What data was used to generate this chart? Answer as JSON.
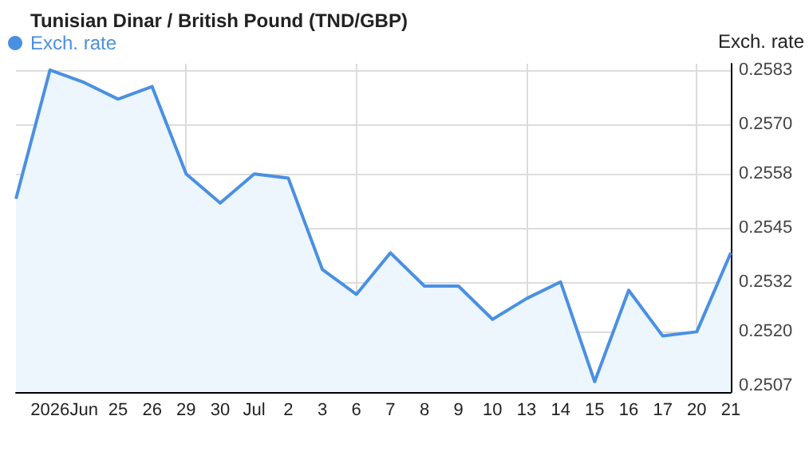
{
  "chart_data": {
    "type": "area",
    "title": "Tunisian Dinar / British Pound (TND/GBP)",
    "ylabel": "Exch. rate",
    "categories": [
      null,
      "2026",
      "Jun",
      "25",
      "26",
      "29",
      "30",
      "Jul",
      "2",
      "3",
      "6",
      "7",
      "8",
      "9",
      "10",
      "13",
      "14",
      "15",
      "16",
      "17",
      "20",
      "21"
    ],
    "series": [
      {
        "name": "Exch. rate",
        "color": "#4a90e2",
        "values": [
          0.2552,
          0.2583,
          0.258,
          0.2576,
          0.2579,
          0.2558,
          0.2551,
          0.2558,
          0.2557,
          0.2535,
          0.2529,
          0.2539,
          0.2531,
          0.2531,
          0.2523,
          0.2528,
          0.2532,
          0.2508,
          0.253,
          0.2519,
          0.252,
          0.2539
        ]
      }
    ],
    "ylim": [
      0.25055,
      0.25845
    ],
    "yticks": [
      0.2507,
      {
        "value": 0.252,
        "label": "0.2520"
      },
      0.2532,
      0.2545,
      0.2558,
      {
        "value": 0.257,
        "label": "0.2570"
      },
      0.2583
    ],
    "grid": true,
    "legend": "top left"
  }
}
